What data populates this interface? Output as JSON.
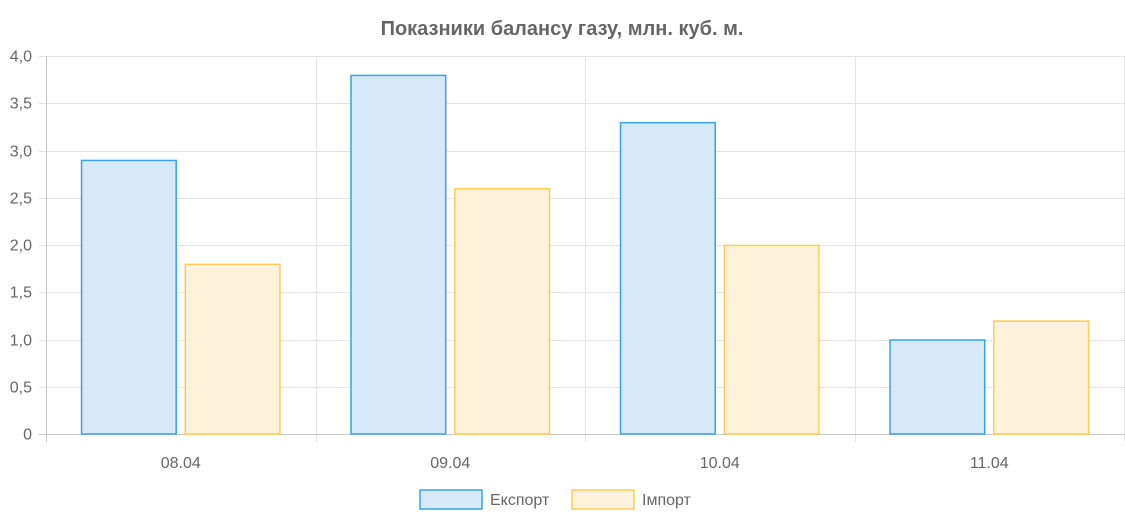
{
  "chart_data": {
    "type": "bar",
    "title": "Показники балансу газу, млн. куб. м.",
    "categories": [
      "08.04",
      "09.04",
      "10.04",
      "11.04"
    ],
    "series": [
      {
        "name": "Експорт",
        "values": [
          2.9,
          3.8,
          3.3,
          1.0
        ],
        "fill": "#d5e9f8",
        "stroke": "#36a2eb"
      },
      {
        "name": "Імпорт",
        "values": [
          1.8,
          2.6,
          2.0,
          1.2
        ],
        "fill": "#fef3da",
        "stroke": "#ffcd56"
      }
    ],
    "ylim": [
      0,
      4
    ],
    "y_ticks": [
      0,
      0.5,
      1.0,
      1.5,
      2.0,
      2.5,
      3.0,
      3.5,
      4.0
    ],
    "y_tick_labels": [
      "0",
      "0,5",
      "1,0",
      "1,5",
      "2,0",
      "2,5",
      "3,0",
      "3,5",
      "4,0"
    ],
    "grid": true,
    "legend": "bottom"
  }
}
